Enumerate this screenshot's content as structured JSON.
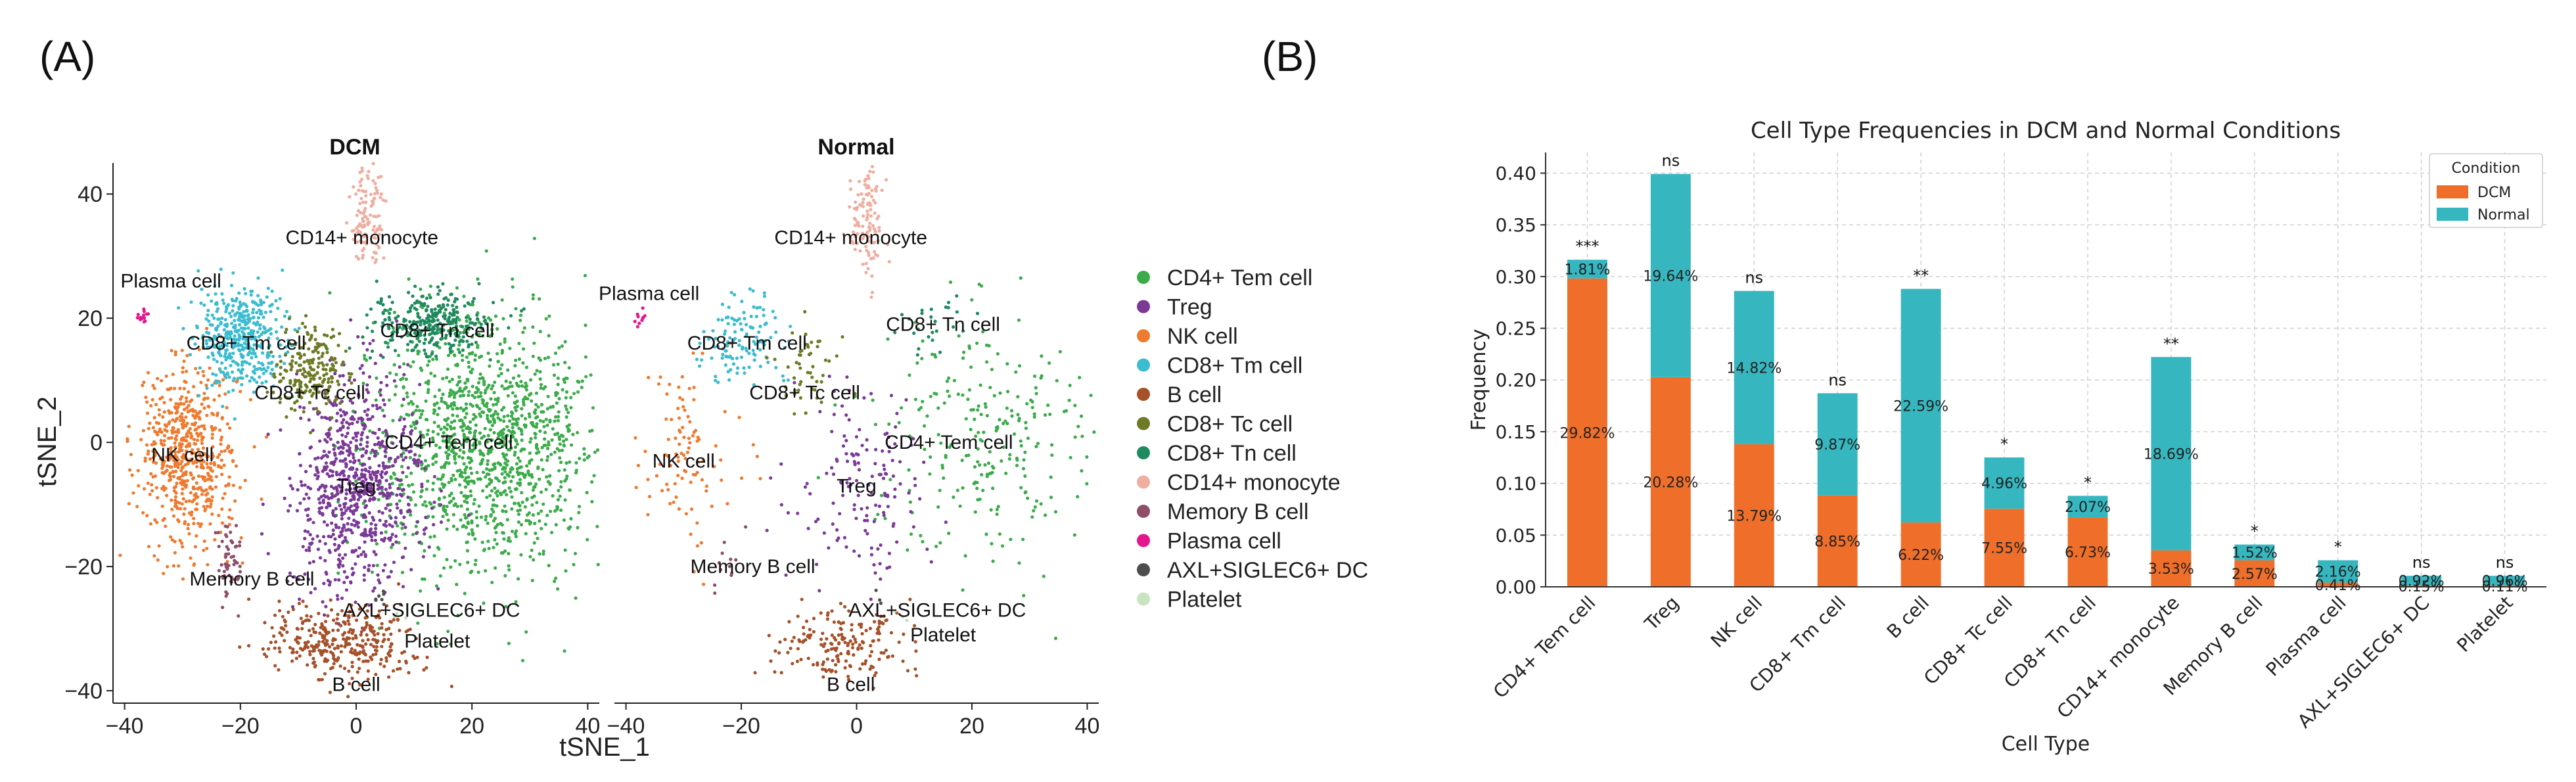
{
  "panel_labels": {
    "a": "(A)",
    "b": "(B)"
  },
  "colors": {
    "CD4+ Tem cell": "#3cac4b",
    "Treg": "#7a3a96",
    "NK cell": "#ee7b30",
    "CD8+ Tm cell": "#3cbccf",
    "B cell": "#a5512a",
    "CD8+ Tc cell": "#6e7a25",
    "CD8+ Tn cell": "#208a5f",
    "CD14+ monocyte": "#eeafa0",
    "Memory B cell": "#8f4e68",
    "Plasma cell": "#e4178c",
    "AXL+SIGLEC6+ DC": "#4d4d4d",
    "Platelet": "#c7e3c0",
    "dcm_bar": "#ef6f2a",
    "normal_bar": "#36b7c0"
  },
  "chart_data": [
    {
      "type": "scatter",
      "title": "DCM / Normal",
      "subplot_titles": [
        "DCM",
        "Normal"
      ],
      "xlabel": "tSNE_1",
      "ylabel": "tSNE_2",
      "xlim": [
        -42,
        42
      ],
      "ylim": [
        -42,
        45
      ],
      "xticks": [
        "−40",
        "−20",
        "0",
        "20",
        "40"
      ],
      "yticks": [
        "−40",
        "−20",
        "0",
        "20",
        "40"
      ],
      "xtick_values": [
        -40,
        -20,
        0,
        20,
        40
      ],
      "ytick_values": [
        -40,
        -20,
        0,
        20,
        40
      ],
      "legend": [
        "CD4+ Tem cell",
        "Treg",
        "NK cell",
        "CD8+ Tm cell",
        "B cell",
        "CD8+ Tc cell",
        "CD8+ Tn cell",
        "CD14+ monocyte",
        "Memory B cell",
        "Plasma cell",
        "AXL+SIGLEC6+ DC",
        "Platelet"
      ],
      "clusters": [
        {
          "name": "CD4+ Tem cell",
          "cx": 22,
          "cy": 0,
          "sx": 9.5,
          "sy": 10.5,
          "dcm": 1300,
          "normal": 250
        },
        {
          "name": "Treg",
          "cx": 0,
          "cy": -7,
          "sx": 5.5,
          "sy": 8,
          "dcm": 800,
          "normal": 150
        },
        {
          "name": "NK cell",
          "cx": -29,
          "cy": -2,
          "sx": 4.2,
          "sy": 7.2,
          "dcm": 600,
          "normal": 100
        },
        {
          "name": "CD8+ Tm cell",
          "cx": -20,
          "cy": 17,
          "sx": 3.5,
          "sy": 4,
          "dcm": 420,
          "normal": 120
        },
        {
          "name": "B cell",
          "cx": -3,
          "cy": -32,
          "sx": 6.5,
          "sy": 3,
          "dcm": 340,
          "normal": 180
        },
        {
          "name": "CD8+ Tc cell",
          "cx": -8,
          "cy": 11,
          "sx": 3,
          "sy": 3.4,
          "dcm": 220,
          "normal": 50
        },
        {
          "name": "CD8+ Tn cell",
          "cx": 13,
          "cy": 19,
          "sx": 5,
          "sy": 2.6,
          "dcm": 300,
          "normal": 25
        },
        {
          "name": "CD14+ monocyte",
          "cx": 2,
          "cy": 36,
          "sx": 1.5,
          "sy": 4.5,
          "dcm": 120,
          "normal": 110
        },
        {
          "name": "Memory B cell",
          "cx": -22,
          "cy": -19,
          "sx": 1.3,
          "sy": 3.5,
          "dcm": 55,
          "normal": 12
        },
        {
          "name": "Plasma cell",
          "cx": -37,
          "cy": 20,
          "sx": 0.6,
          "sy": 0.8,
          "dcm": 14,
          "normal": 10
        },
        {
          "name": "AXL+SIGLEC6+ DC",
          "cx": 4,
          "cy": -25,
          "sx": 0.8,
          "sy": 0.8,
          "dcm": 6,
          "normal": 3
        },
        {
          "name": "Platelet",
          "cx": 8,
          "cy": -28,
          "sx": 0.8,
          "sy": 0.8,
          "dcm": 4,
          "normal": 3
        }
      ],
      "dcm_labels": [
        {
          "text": "CD14+ monocyte",
          "x": 1,
          "y": 33
        },
        {
          "text": "Plasma cell",
          "x": -32,
          "y": 26
        },
        {
          "text": "CD8+ Tm cell",
          "x": -19,
          "y": 16
        },
        {
          "text": "CD8+ Tn cell",
          "x": 14,
          "y": 18
        },
        {
          "text": "CD8+ Tc cell",
          "x": -8,
          "y": 8
        },
        {
          "text": "CD4+ Tem cell",
          "x": 16,
          "y": 0
        },
        {
          "text": "NK cell",
          "x": -30,
          "y": -2
        },
        {
          "text": "Treg",
          "x": 0,
          "y": -7
        },
        {
          "text": "Memory B cell",
          "x": -18,
          "y": -22
        },
        {
          "text": "AXL+SIGLEC6+ DC",
          "x": 13,
          "y": -27
        },
        {
          "text": "Platelet",
          "x": 14,
          "y": -32
        },
        {
          "text": "B cell",
          "x": 0,
          "y": -39
        }
      ],
      "normal_labels": [
        {
          "text": "CD14+ monocyte",
          "x": -1,
          "y": 33
        },
        {
          "text": "Plasma cell",
          "x": -36,
          "y": 24
        },
        {
          "text": "CD8+ Tm cell",
          "x": -19,
          "y": 16
        },
        {
          "text": "CD8+ Tn cell",
          "x": 15,
          "y": 19
        },
        {
          "text": "CD8+ Tc cell",
          "x": -9,
          "y": 8
        },
        {
          "text": "CD4+ Tem cell",
          "x": 16,
          "y": 0
        },
        {
          "text": "NK cell",
          "x": -30,
          "y": -3
        },
        {
          "text": "Treg",
          "x": 0,
          "y": -7
        },
        {
          "text": "Memory B cell",
          "x": -18,
          "y": -20
        },
        {
          "text": "AXL+SIGLEC6+ DC",
          "x": 14,
          "y": -27
        },
        {
          "text": "Platelet",
          "x": 15,
          "y": -31
        },
        {
          "text": "B cell",
          "x": -1,
          "y": -39
        }
      ]
    },
    {
      "type": "bar",
      "stacked": true,
      "title": "Cell Type Frequencies in DCM and Normal Conditions",
      "xlabel": "Cell Type",
      "ylabel": "Frequency",
      "ylim": [
        0,
        0.42
      ],
      "yticks": [
        "0.00",
        "0.05",
        "0.10",
        "0.15",
        "0.20",
        "0.25",
        "0.30",
        "0.35",
        "0.40"
      ],
      "ytick_values": [
        0,
        0.05,
        0.1,
        0.15,
        0.2,
        0.25,
        0.3,
        0.35,
        0.4
      ],
      "grid": true,
      "legend_title": "Condition",
      "legend_position": "top-right",
      "categories": [
        "CD4+ Tem cell",
        "Treg",
        "NK cell",
        "CD8+ Tm cell",
        "B cell",
        "CD8+ Tc cell",
        "CD8+ Tn cell",
        "CD14+ monocyte",
        "Memory B cell",
        "Plasma cell",
        "AXL+SIGLEC6+ DC",
        "Platelet"
      ],
      "series": [
        {
          "name": "DCM",
          "values": [
            0.2982,
            0.2028,
            0.1379,
            0.0885,
            0.0622,
            0.0755,
            0.0673,
            0.0353,
            0.0257,
            0.0041,
            0.0015,
            0.0011
          ],
          "labels": [
            "29.82%",
            "20.28%",
            "13.79%",
            "8.85%",
            "6.22%",
            "7.55%",
            "6.73%",
            "3.53%",
            "2.57%",
            "0.41%",
            "0.15%",
            "0.11%"
          ]
        },
        {
          "name": "Normal",
          "values": [
            0.0181,
            0.1964,
            0.1482,
            0.0987,
            0.2259,
            0.0496,
            0.0207,
            0.1869,
            0.0152,
            0.0216,
            0.0092,
            0.0096
          ],
          "labels": [
            "1.81%",
            "19.64%",
            "14.82%",
            "9.87%",
            "22.59%",
            "4.96%",
            "2.07%",
            "18.69%",
            "1.52%",
            "2.16%",
            "0.92%",
            "0.96%"
          ]
        }
      ],
      "significance": [
        "***",
        "ns",
        "ns",
        "ns",
        "**",
        "*",
        "*",
        "**",
        "*",
        "*",
        "ns",
        "ns"
      ]
    }
  ]
}
